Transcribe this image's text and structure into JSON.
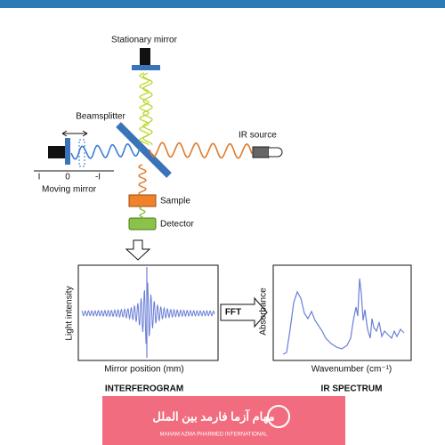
{
  "labels": {
    "stationary_mirror": "Stationary mirror",
    "beamsplitter": "Beamsplitter",
    "ir_source": "IR source",
    "moving_mirror": "Moving mirror",
    "scale": [
      "I",
      "0",
      "-I"
    ],
    "sample": "Sample",
    "detector": "Detector"
  },
  "interferogram": {
    "y_label": "Light intensity",
    "x_label": "Mirror position (mm)",
    "title": "INTERFEROGRAM"
  },
  "fft": "FFT",
  "spectrum": {
    "y_label": "Absorbance",
    "x_label": "Wavenumber (cm⁻¹)",
    "title": "IR SPECTRUM"
  },
  "logo": {
    "name": "مهام آزما فارمد بين الملل",
    "subtitle": "MAHAM AZMA PHARMED INTERNATIONAL"
  }
}
